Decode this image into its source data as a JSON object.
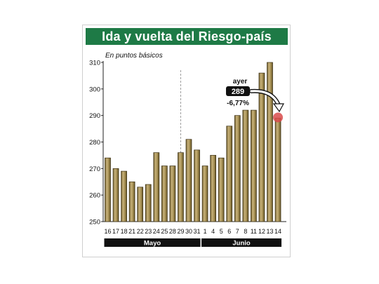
{
  "header": {
    "title": "Ida y vuelta del Riesgo-país"
  },
  "chart_data": {
    "type": "bar",
    "title": "Ida y vuelta del Riesgo-país",
    "subtitle": "En puntos básicos",
    "categories": [
      "16",
      "17",
      "18",
      "21",
      "22",
      "23",
      "24",
      "25",
      "28",
      "29",
      "30",
      "31",
      "1",
      "4",
      "5",
      "6",
      "7",
      "8",
      "11",
      "12",
      "13",
      "14"
    ],
    "values": [
      274,
      270,
      269,
      265,
      263,
      264,
      276,
      271,
      271,
      276,
      281,
      277,
      271,
      275,
      274,
      286,
      290,
      292,
      292,
      306,
      310,
      289
    ],
    "ylim": [
      250,
      310
    ],
    "yticks": [
      250,
      260,
      270,
      280,
      290,
      300,
      310
    ],
    "month_groups": [
      {
        "label": "Mayo",
        "from": 0,
        "to": 11
      },
      {
        "label": "Junio",
        "from": 12,
        "to": 21
      }
    ],
    "annotation": {
      "label": "ayer",
      "value": "289",
      "change": "-6,77%"
    },
    "colors": {
      "bar": "#a08a4e",
      "header": "#1e7a46",
      "marker": "#d94b4b",
      "month_bar": "#111111"
    },
    "grid": false,
    "legend": "none"
  }
}
